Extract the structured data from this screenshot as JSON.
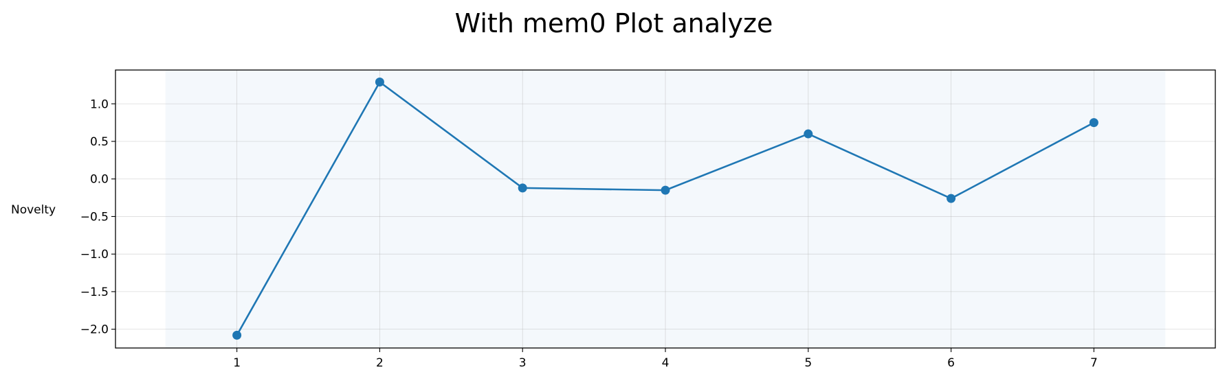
{
  "chart_data": {
    "type": "line",
    "title": "With mem0 Plot analyze",
    "xlabel": "",
    "ylabel": "Novelty",
    "x": [
      1,
      2,
      3,
      4,
      5,
      6,
      7
    ],
    "series": [
      {
        "values": [
          -2.08,
          1.29,
          -0.12,
          -0.15,
          0.6,
          -0.26,
          0.75
        ],
        "color": "#1f77b4"
      }
    ],
    "x_ticks": [
      1,
      2,
      3,
      4,
      5,
      6,
      7
    ],
    "x_tick_labels": [
      "1",
      "2",
      "3",
      "4",
      "5",
      "6",
      "7"
    ],
    "y_ticks": [
      1.0,
      0.5,
      0.0,
      -0.5,
      -1.0,
      -1.5,
      -2.0
    ],
    "y_tick_labels": [
      "1.0",
      "0.5",
      "0.0",
      "−0.5",
      "−1.0",
      "−1.5",
      "−2.0"
    ],
    "xlim": [
      0.15,
      7.85
    ],
    "ylim": [
      -2.25,
      1.45
    ],
    "shaded_region_x": [
      0.5,
      7.5
    ],
    "shaded_color": "#f4f8fc",
    "grid": true,
    "legend": false
  }
}
